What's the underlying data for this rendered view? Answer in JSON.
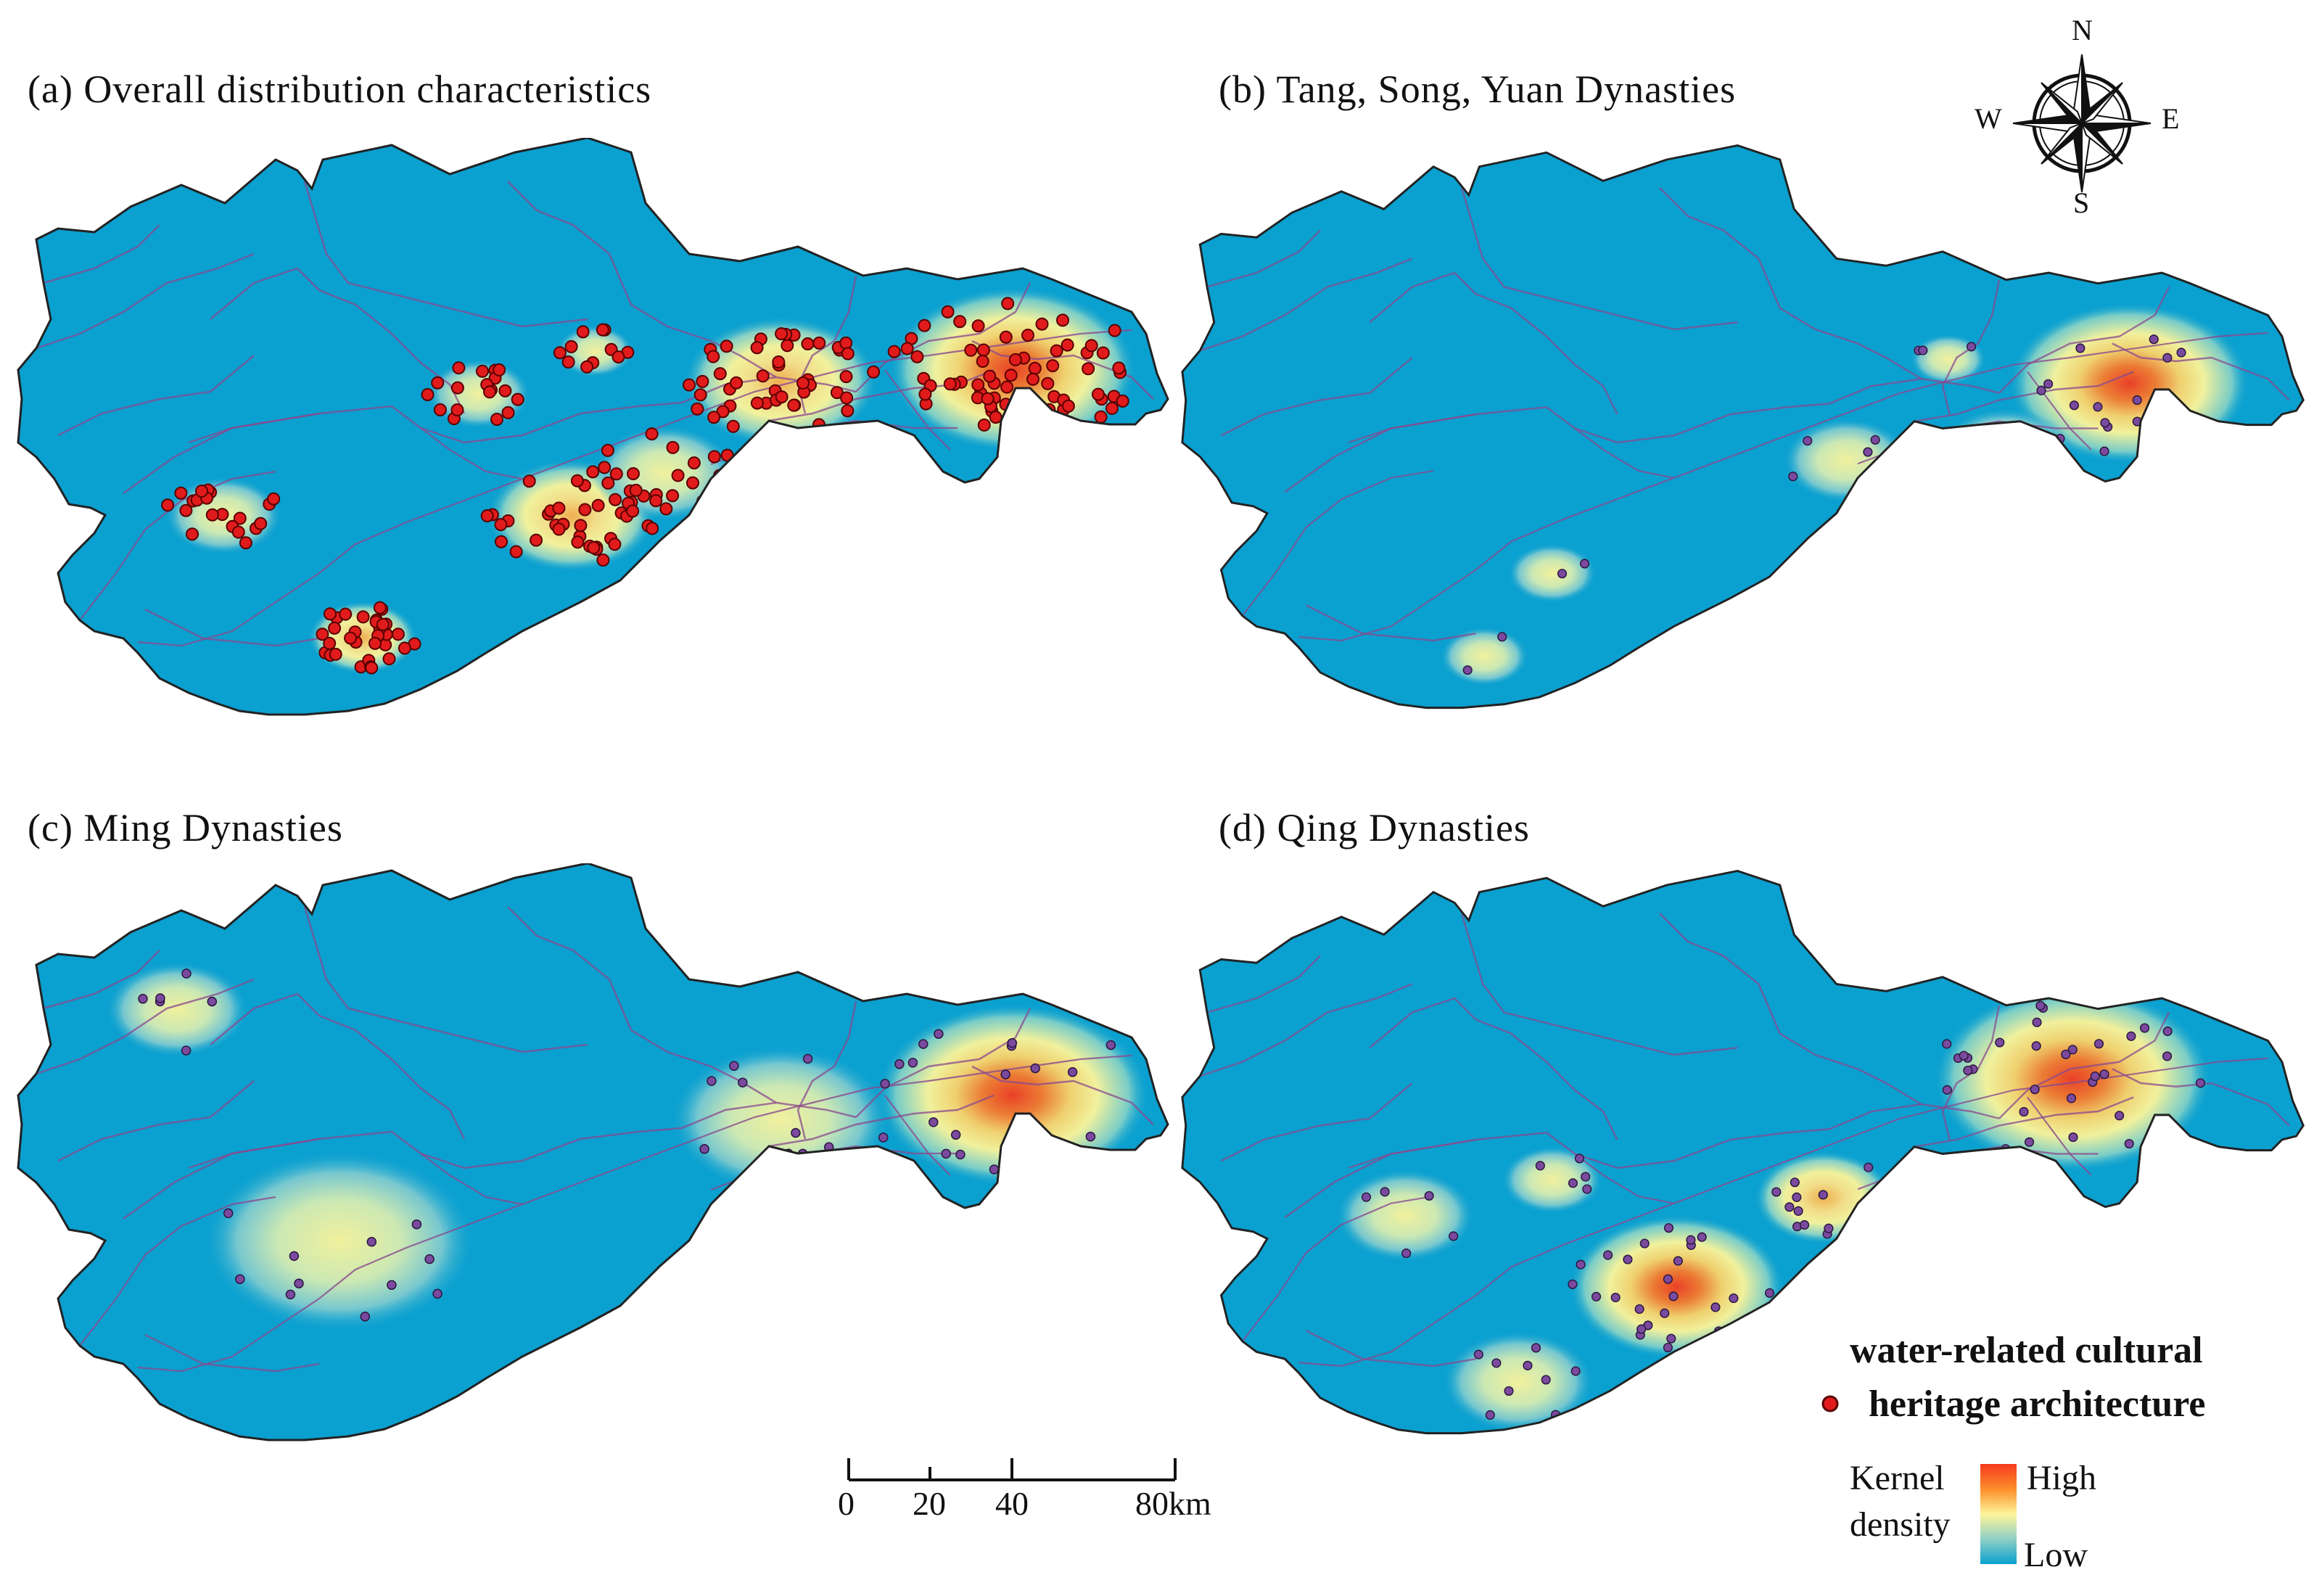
{
  "panels": [
    {
      "id": "a",
      "title": "(a) Overall distribution characteristics",
      "hotspots": [
        [
          0.86,
          0.38,
          0.95,
          1.0
        ],
        [
          0.66,
          0.4,
          0.75,
          0.65
        ],
        [
          0.48,
          0.62,
          0.65,
          0.55
        ],
        [
          0.56,
          0.55,
          0.55,
          0.5
        ],
        [
          0.3,
          0.82,
          0.42,
          0.55
        ],
        [
          0.18,
          0.62,
          0.45,
          0.4
        ],
        [
          0.4,
          0.42,
          0.4,
          0.3
        ],
        [
          0.5,
          0.35,
          0.3,
          0.3
        ]
      ]
    },
    {
      "id": "b",
      "title": "(b) Tang, Song, Yuan Dynasties",
      "hotspots": [
        [
          0.84,
          0.4,
          0.95,
          0.9
        ],
        [
          0.59,
          0.53,
          0.5,
          0.4
        ],
        [
          0.73,
          0.52,
          0.55,
          0.35
        ],
        [
          0.68,
          0.36,
          0.3,
          0.25
        ],
        [
          0.33,
          0.72,
          0.35,
          0.2
        ],
        [
          0.27,
          0.86,
          0.35,
          0.2
        ]
      ]
    },
    {
      "id": "c",
      "title": "(c) Ming Dynasties",
      "hotspots": [
        [
          0.86,
          0.38,
          1.05,
          1.0
        ],
        [
          0.28,
          0.62,
          1.05,
          0.45
        ],
        [
          0.66,
          0.42,
          0.85,
          0.4
        ],
        [
          0.14,
          0.24,
          0.55,
          0.2
        ]
      ]
    },
    {
      "id": "d",
      "title": "(d) Qing Dynasties",
      "hotspots": [
        [
          0.79,
          0.35,
          1.1,
          1.0
        ],
        [
          0.44,
          0.7,
          0.85,
          0.85
        ],
        [
          0.57,
          0.55,
          0.55,
          0.6
        ],
        [
          0.3,
          0.86,
          0.6,
          0.4
        ],
        [
          0.2,
          0.58,
          0.55,
          0.25
        ],
        [
          0.33,
          0.52,
          0.4,
          0.2
        ],
        [
          0.97,
          0.53,
          0.35,
          0.3
        ]
      ]
    }
  ],
  "compass": {
    "n": "N",
    "s": "S",
    "e": "E",
    "w": "W"
  },
  "scale": {
    "ticks": [
      "0",
      "20",
      "40",
      "80km"
    ]
  },
  "legend": {
    "points_label_line1": "water-related cultural",
    "points_label_line2": "heritage architecture",
    "kernel_line1": "Kernel",
    "kernel_line2": "density",
    "high": "High",
    "low": "Low"
  },
  "colors": {
    "low": "#0aa0d0",
    "mid": "#fdf59a",
    "high": "#f63b1e",
    "boundary": "#222222",
    "rivers": "#8a4a8f",
    "point_a": "#e11b1b",
    "point_other": "#7b4a9e"
  }
}
